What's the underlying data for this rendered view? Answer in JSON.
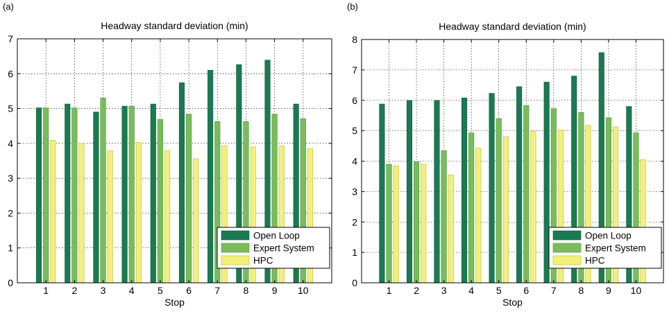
{
  "series_colors": {
    "Open Loop": "#1a7a52",
    "Expert System": "#79bd5b",
    "HPC": "#f2f07a"
  },
  "chart_data": [
    {
      "panel_label": "(a)",
      "type": "bar",
      "title": "Headway standard deviation (min)",
      "xlabel": "Stop",
      "ylabel": "",
      "categories": [
        "1",
        "2",
        "3",
        "4",
        "5",
        "6",
        "7",
        "8",
        "9",
        "10"
      ],
      "yticks": [
        "0",
        "1",
        "2",
        "3",
        "4",
        "5",
        "6",
        "7"
      ],
      "ylim": [
        0,
        7
      ],
      "grid": true,
      "legend_position": "bottom-right",
      "series": [
        {
          "name": "Open Loop",
          "values": [
            5.02,
            5.13,
            4.9,
            5.07,
            5.13,
            5.74,
            6.1,
            6.26,
            6.39,
            5.13
          ]
        },
        {
          "name": "Expert System",
          "values": [
            5.02,
            5.02,
            5.3,
            5.07,
            4.69,
            4.84,
            4.63,
            4.63,
            4.84,
            4.71
          ]
        },
        {
          "name": "HPC",
          "values": [
            4.09,
            4.0,
            3.79,
            4.03,
            3.79,
            3.56,
            3.93,
            3.9,
            3.93,
            3.85
          ]
        }
      ]
    },
    {
      "panel_label": "(b)",
      "type": "bar",
      "title": "Headway standard deviation (min)",
      "xlabel": "Stop",
      "ylabel": "",
      "categories": [
        "1",
        "2",
        "3",
        "4",
        "5",
        "6",
        "7",
        "8",
        "9",
        "10"
      ],
      "yticks": [
        "0",
        "1",
        "2",
        "3",
        "4",
        "5",
        "6",
        "7",
        "8"
      ],
      "ylim": [
        0,
        8
      ],
      "grid": true,
      "legend_position": "bottom-right",
      "series": [
        {
          "name": "Open Loop",
          "values": [
            5.88,
            6.0,
            6.0,
            6.08,
            6.23,
            6.45,
            6.6,
            6.8,
            7.57,
            5.8
          ]
        },
        {
          "name": "Expert System",
          "values": [
            3.9,
            3.98,
            4.35,
            4.93,
            5.4,
            5.83,
            5.73,
            5.6,
            5.43,
            4.93
          ]
        },
        {
          "name": "HPC",
          "values": [
            3.85,
            3.9,
            3.55,
            4.43,
            4.8,
            4.98,
            5.03,
            5.18,
            5.13,
            4.05
          ]
        }
      ]
    }
  ]
}
